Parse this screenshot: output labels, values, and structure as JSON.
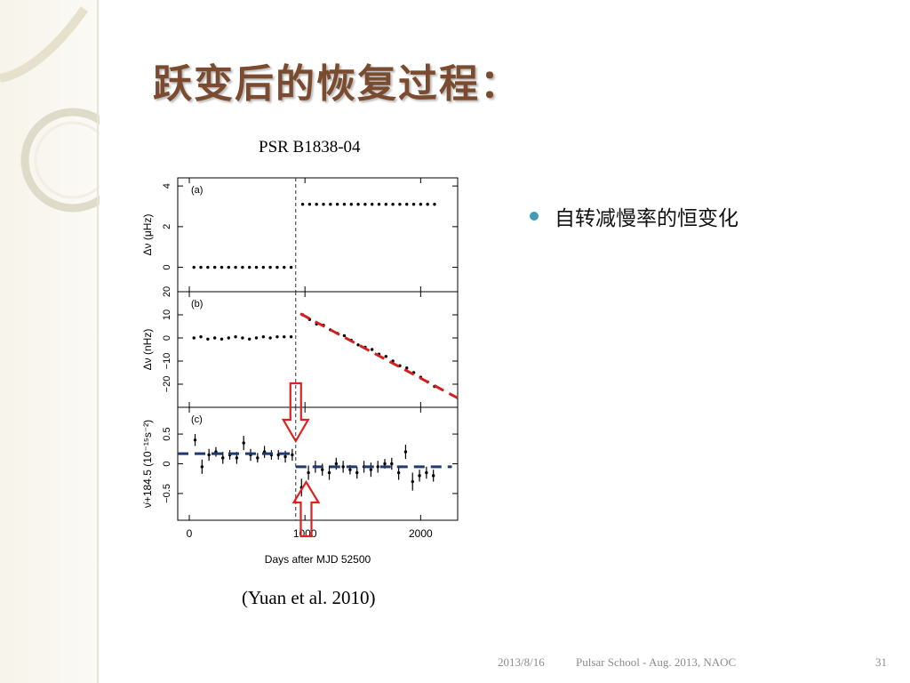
{
  "slide": {
    "title": "跃变后的恢复过程：",
    "figure_caption": "PSR B1838-04",
    "citation": "(Yuan et al. 2010)",
    "bullet": "自转减慢率的恒变化"
  },
  "footer": {
    "date": "2013/8/16",
    "text": "Pulsar School  - Aug. 2013, NAOC",
    "page": "31"
  },
  "colors": {
    "title": "#7a4b2e",
    "bullet_dot": "#3e9db5",
    "red_fit": "#d32020",
    "blue_fit": "#1f3a6b",
    "arrow": "#e02020"
  },
  "chart_data": {
    "type": "scatter",
    "xlabel": "Days after MJD 52500",
    "xlim": [
      -100,
      2320
    ],
    "xticks": [
      "0",
      "1000",
      "2000"
    ],
    "glitch_day": 920,
    "panels": [
      {
        "label": "(a)",
        "ylabel": "Δν (μHz)",
        "ylim": [
          -1.2,
          4.4
        ],
        "yticks": [
          "0",
          "2",
          "4"
        ],
        "x": [
          40,
          100,
          160,
          220,
          280,
          340,
          400,
          460,
          520,
          580,
          640,
          700,
          760,
          820,
          880,
          980,
          1040,
          1100,
          1160,
          1220,
          1280,
          1340,
          1400,
          1460,
          1520,
          1580,
          1640,
          1700,
          1760,
          1820,
          1880,
          1940,
          2000,
          2060,
          2120
        ],
        "y": [
          0,
          0,
          0,
          0,
          0,
          0,
          0,
          0,
          0,
          0,
          0,
          0,
          0,
          0,
          0,
          3.1,
          3.1,
          3.1,
          3.1,
          3.1,
          3.1,
          3.1,
          3.1,
          3.1,
          3.1,
          3.1,
          3.1,
          3.1,
          3.1,
          3.1,
          3.1,
          3.1,
          3.1,
          3.1,
          3.1
        ]
      },
      {
        "label": "(b)",
        "ylabel": "Δν (nHz)",
        "ylim": [
          -30,
          20
        ],
        "yticks": [
          "−20",
          "−10",
          "0",
          "10",
          "20"
        ],
        "x": [
          40,
          100,
          160,
          220,
          280,
          340,
          400,
          460,
          520,
          580,
          640,
          700,
          760,
          820,
          880,
          980,
          1040,
          1100,
          1160,
          1220,
          1280,
          1340,
          1400,
          1460,
          1520,
          1580,
          1640,
          1700,
          1760,
          1820,
          1880,
          1940,
          2000,
          2060,
          2120
        ],
        "y": [
          0,
          0.5,
          -0.5,
          0,
          -0.5,
          0,
          0.5,
          0,
          -0.5,
          0,
          0.5,
          0,
          0.5,
          0.5,
          0.5,
          10,
          8,
          6,
          5.5,
          3.5,
          2,
          1,
          -1,
          -3,
          -4,
          -5,
          -7,
          -8,
          -10,
          -12,
          -13,
          -15,
          -17,
          -19,
          -21
        ],
        "fit_line": {
          "x": [
            960,
            2320
          ],
          "y": [
            10.5,
            -26
          ]
        }
      },
      {
        "label": "(c)",
        "ylabel": "ν̇+184.5 (10⁻¹⁵s⁻²)",
        "ylim": [
          -0.95,
          0.95
        ],
        "yticks": [
          "−0.5",
          "0",
          "0.5"
        ],
        "x": [
          50,
          110,
          170,
          230,
          290,
          350,
          410,
          470,
          530,
          590,
          650,
          710,
          770,
          830,
          890,
          970,
          1030,
          1090,
          1150,
          1210,
          1270,
          1330,
          1390,
          1450,
          1510,
          1570,
          1630,
          1690,
          1750,
          1810,
          1870,
          1930,
          1990,
          2050,
          2110
        ],
        "y": [
          0.4,
          -0.05,
          0.15,
          0.2,
          0.1,
          0.15,
          0.1,
          0.35,
          0.15,
          0.1,
          0.2,
          0.15,
          0.15,
          0.12,
          0.15,
          -0.4,
          -0.15,
          -0.05,
          -0.1,
          -0.15,
          0,
          -0.05,
          -0.1,
          -0.15,
          -0.05,
          -0.1,
          -0.05,
          0,
          0,
          -0.15,
          0.2,
          -0.3,
          -0.2,
          -0.15,
          -0.2
        ],
        "err": [
          0.1,
          0.12,
          0.1,
          0.08,
          0.1,
          0.08,
          0.1,
          0.12,
          0.1,
          0.08,
          0.1,
          0.08,
          0.08,
          0.1,
          0.1,
          0.15,
          0.12,
          0.1,
          0.1,
          0.12,
          0.1,
          0.1,
          0.08,
          0.1,
          0.1,
          0.12,
          0.1,
          0.08,
          0.1,
          0.12,
          0.12,
          0.15,
          0.1,
          0.1,
          0.1
        ],
        "fit_segments": [
          {
            "x": [
              -100,
              920
            ],
            "y": [
              0.17,
              0.17
            ]
          },
          {
            "x": [
              920,
              2270
            ],
            "y": [
              -0.05,
              -0.05
            ]
          }
        ]
      }
    ]
  }
}
